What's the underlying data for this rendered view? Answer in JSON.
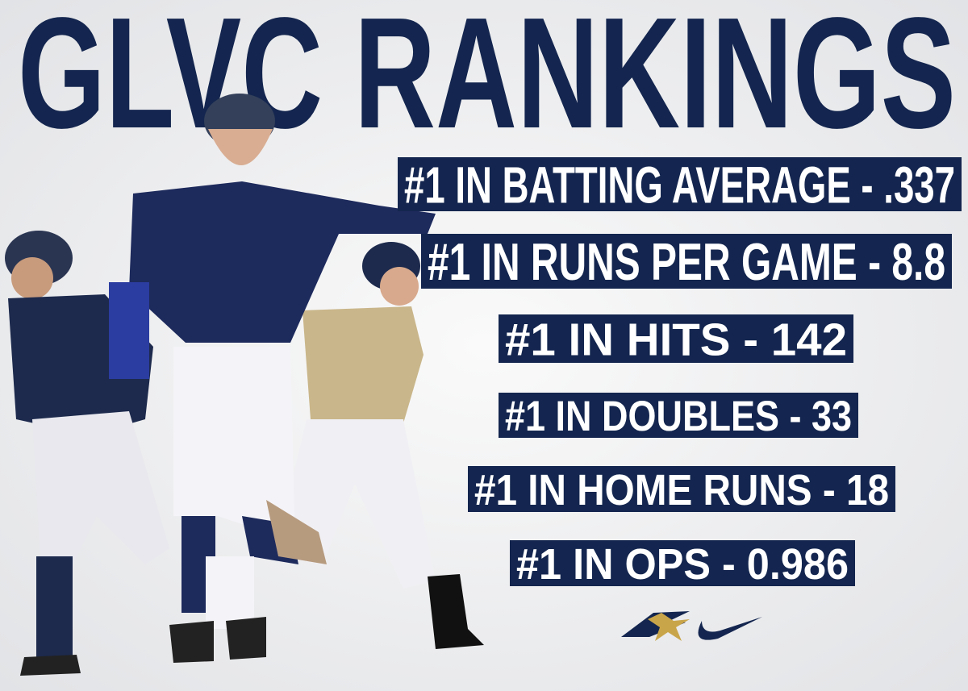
{
  "header": {
    "title": "GLVC RANKINGS"
  },
  "rankings": [
    "#1 IN BATTING AVERAGE - .337",
    "#1 IN RUNS PER GAME - 8.8",
    "#1 IN HITS - 142",
    "#1 IN DOUBLES - 33",
    "#1 IN HOME RUNS - 18",
    "#1 IN OPS - 0.986"
  ]
}
